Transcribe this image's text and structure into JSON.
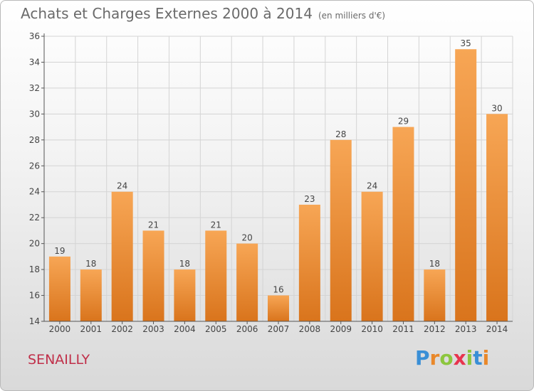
{
  "header": {
    "title": "Achats et Charges Externes 2000 à 2014",
    "unit": "(en milliers d'€)"
  },
  "footer": {
    "commune": "SENAILLY",
    "logo_letters": [
      "P",
      "r",
      "o",
      "x",
      "i",
      "t",
      "i"
    ]
  },
  "colors": {
    "bar_top": "#f7a655",
    "bar_bottom": "#d9741c",
    "grid": "#d4d4d4",
    "axis": "#555555",
    "logo": [
      "#3a8fd6",
      "#e9882a",
      "#8cc63e",
      "#e8344e",
      "#8cc63e",
      "#3a8fd6",
      "#e9882a"
    ]
  },
  "chart_data": {
    "type": "bar",
    "title": "Achats et Charges Externes 2000 à 2014",
    "categories": [
      "2000",
      "2001",
      "2002",
      "2003",
      "2004",
      "2005",
      "2006",
      "2007",
      "2008",
      "2009",
      "2010",
      "2011",
      "2012",
      "2013",
      "2014"
    ],
    "values": [
      19,
      18,
      24,
      21,
      18,
      21,
      20,
      16,
      23,
      28,
      24,
      29,
      18,
      35,
      30
    ],
    "ylim": [
      14,
      36
    ],
    "yticks": [
      14,
      16,
      18,
      20,
      22,
      24,
      26,
      28,
      30,
      32,
      34,
      36
    ],
    "grid": true,
    "data_labels": true
  }
}
